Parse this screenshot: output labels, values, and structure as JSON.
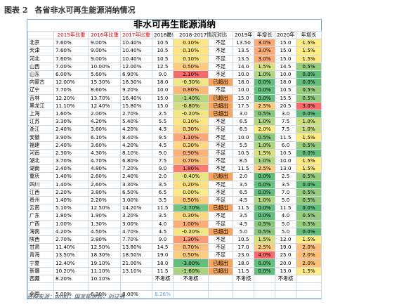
{
  "header": {
    "label": "图表 2",
    "title": "各省非水可再生能源消纳情况"
  },
  "table": {
    "title": "非水可再生能源消纳",
    "columns": [
      null,
      "2015年比重",
      "2016年比重",
      "2017年比重",
      "2018最低",
      "2018-2017情况对比",
      "2019年",
      "年增长",
      "2020年",
      "年增长"
    ],
    "rows": [
      [
        "北京",
        "7.60%",
        "9.00%",
        "10.40%",
        "10.5",
        "0.10%",
        "不足",
        "13.50",
        "3.0%",
        "15.0",
        "1.5%"
      ],
      [
        "天津",
        "7.60%",
        "9.00%",
        "10.40%",
        "10.5",
        "0.10%",
        "不足",
        "13.5",
        "3.0%",
        "15.0",
        "1.5%"
      ],
      [
        "河北",
        "7.60%",
        "9.00%",
        "10.40%",
        "10.5",
        "0.10%",
        "不足",
        "13.5",
        "3.0%",
        "15.0",
        "1.5%"
      ],
      [
        "山西",
        "7.00%",
        "10.00%",
        "12.00%",
        "12.5",
        "0.50%",
        "不足",
        "14.0",
        "1.5%",
        "14.5",
        "0.5%"
      ],
      [
        "山东",
        "6.00%",
        "5.60%",
        "6.90%",
        "9.0",
        "2.10%",
        "不足",
        "10.0",
        "1.0%",
        "10.0",
        "0.0%"
      ],
      [
        "内蒙古",
        "12.00%",
        "15.30%",
        "18.30%",
        "18.0",
        "-0.30%",
        "已超出",
        "18.0",
        "0.0%",
        "18.0",
        "0.0%"
      ],
      [
        "辽宁",
        "7.70%",
        "8.60%",
        "9.20%",
        "10.0",
        "0.80%",
        "不足",
        "10.0",
        "0.0%",
        "10.5",
        "0.5%"
      ],
      [
        "吉林",
        "12.20%",
        "13.70%",
        "16.40%",
        "15.0",
        "-1.40%",
        "已超出",
        "15.0",
        "0.0%",
        "15.5",
        "0.5%"
      ],
      [
        "黑龙江",
        "11.10%",
        "12.40%",
        "15.80%",
        "15.0",
        "-0.80%",
        "已超出",
        "17.5",
        "2.5%",
        "20.5",
        "3.0%"
      ],
      [
        "上海",
        "1.60%",
        "2.00%",
        "2.70%",
        "2.5",
        "-0.20%",
        "已超出",
        "3.0",
        "0.5%",
        "3.0",
        "0.0%"
      ],
      [
        "江苏",
        "3.30%",
        "4.20%",
        "5.40%",
        "5.5",
        "0.10%",
        "不足",
        "6.5",
        "1.0%",
        "7.5",
        "1.0%"
      ],
      [
        "浙江",
        "2.40%",
        "3.60%",
        "4.20%",
        "4.5",
        "0.30%",
        "不足",
        "6.5",
        "2.0%",
        "7.5",
        "1.0%"
      ],
      [
        "安徽",
        "3.90%",
        "6.10%",
        "8.40%",
        "9.5",
        "1.10%",
        "不足",
        "10.0",
        "0.5%",
        "11.5",
        "1.5%"
      ],
      [
        "福建",
        "2.40%",
        "3.60%",
        "4.20%",
        "4.5",
        "0.30%",
        "不足",
        "5.5",
        "1.0%",
        "6.0",
        "0.5%"
      ],
      [
        "河南",
        "2.30%",
        "4.30%",
        "8.10%",
        "9.0",
        "0.90%",
        "不足",
        "10.5",
        "1.5%",
        "10.5",
        "0.0%"
      ],
      [
        "湖北",
        "3.70%",
        "4.70%",
        "6.80%",
        "7.5",
        "0.70%",
        "不足",
        "8.5",
        "1.0%",
        "10.0",
        "1.5%"
      ],
      [
        "湖南",
        "2.40%",
        "4.80%",
        "7.20%",
        "9.0",
        "1.80%",
        "不足",
        "11.5",
        "2.5%",
        "13.0",
        "1.5%"
      ],
      [
        "重庆",
        "1.40%",
        "2.60%",
        "2.40%",
        "2.0",
        "-0.40%",
        "已超出",
        "2.0",
        "0.0%",
        "2.5",
        "0.5%"
      ],
      [
        "四川",
        "1.40%",
        "2.60%",
        "3.30%",
        "3.5",
        "0.20%",
        "不足",
        "3.5",
        "0.0%",
        "3.5",
        "0.0%"
      ],
      [
        "江西",
        "2.20%",
        "3.80%",
        "6.50%",
        "6.5",
        "0.00%",
        "不足",
        "6.5",
        "0.0%",
        "7.0",
        "0.5%"
      ],
      [
        "贵州",
        "1.40%",
        "2.20%",
        "3.00%",
        "3.5",
        "0.50%",
        "不足",
        "4.5",
        "1.0%",
        "5.0",
        "0.5%"
      ],
      [
        "云南",
        "5.10%",
        "12.50%",
        "14.20%",
        "11.5",
        "-2.70%",
        "已超出",
        "11.5",
        "0.0%",
        "11.5",
        "0.0%"
      ],
      [
        "广东",
        "1.80%",
        "1.90%",
        "3.20%",
        "3.5",
        "0.30%",
        "不足",
        "3.5",
        "0.0%",
        "4.0",
        "0.5%"
      ],
      [
        "广西",
        "1.00%",
        "1.30%",
        "3.00%",
        "4.0",
        "1.00%",
        "不足",
        "4.5",
        "0.5%",
        "5.0",
        "0.5%"
      ],
      [
        "海南",
        "4.20%",
        "4.50%",
        "4.70%",
        "4.5",
        "-0.20%",
        "已超出",
        "5.0",
        "0.5%",
        "5.0",
        "0.0%"
      ],
      [
        "陕西",
        "2.70%",
        "3.80%",
        "7.70%",
        "9.0",
        "1.30%",
        "不足",
        "10.5",
        "1.5%",
        "12.0",
        "1.5%"
      ],
      [
        "甘肃",
        "11.40%",
        "12.50%",
        "13.80%",
        "14.5",
        "0.70%",
        "不足",
        "17.0",
        "2.5%",
        "19.0",
        "2.0%"
      ],
      [
        "青海",
        "13.50%",
        "18.30%",
        "18.50%",
        "19.0",
        "0.50%",
        "不足",
        "23.0",
        "4.0%",
        "25.0",
        "2.0%"
      ],
      [
        "宁夏",
        "12.40%",
        "19.10%",
        "21.00%",
        "18.0",
        "-3.00%",
        "已超出",
        "18.0",
        "0.0%",
        "20.0",
        "2.0%"
      ],
      [
        "新疆",
        "10.20%",
        "11.10%",
        "13.10%",
        "11.5",
        "-1.60%",
        "已超出",
        "11.5",
        "0.0%",
        "13.0",
        "1.5%"
      ],
      [
        "西藏",
        "8.20%",
        "10.10%",
        null,
        "不考核",
        "不考核",
        null,
        "不考核",
        null,
        "不考核",
        null
      ]
    ],
    "total": [
      "全国",
      "5.00%",
      "6.30%",
      "8.00%",
      "8.26%"
    ]
  },
  "source": "资料来源：wind，国家能源局，创证券"
}
